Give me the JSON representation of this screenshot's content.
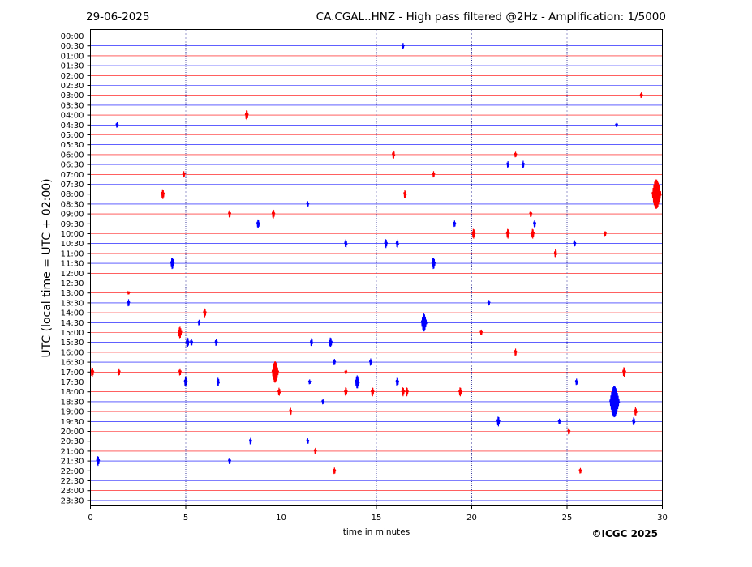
{
  "header": {
    "date": "29-06-2025",
    "title": "CA.CGAL..HNZ - High pass filtered @2Hz - Amplification: 1/5000"
  },
  "footer": {
    "copyright": "©ICGC 2025"
  },
  "chart_data": {
    "type": "line",
    "title": "CA.CGAL..HNZ - High pass filtered @2Hz - Amplification: 1/5000",
    "xlabel": "time in minutes",
    "ylabel": "UTC (local time = UTC + 02:00)",
    "xlim": [
      0,
      30
    ],
    "xticks": [
      0,
      5,
      10,
      15,
      20,
      25,
      30
    ],
    "xtick_labels": [
      "0",
      "5",
      "10",
      "15",
      "20",
      "25",
      "30"
    ],
    "vertical_gridlines_minutes": [
      5,
      10,
      15,
      20,
      25
    ],
    "trace_colors": [
      "#ff0000",
      "#0000ff"
    ],
    "rows": [
      "00:00",
      "00:30",
      "01:00",
      "01:30",
      "02:00",
      "02:30",
      "03:00",
      "03:30",
      "04:00",
      "04:30",
      "05:00",
      "05:30",
      "06:00",
      "06:30",
      "07:00",
      "07:30",
      "08:00",
      "08:30",
      "09:00",
      "09:30",
      "10:00",
      "10:30",
      "11:00",
      "11:30",
      "12:00",
      "12:30",
      "13:00",
      "13:30",
      "14:00",
      "14:30",
      "15:00",
      "15:30",
      "16:00",
      "16:30",
      "17:00",
      "17:30",
      "18:00",
      "18:30",
      "19:00",
      "19:30",
      "20:00",
      "20:30",
      "21:00",
      "21:30",
      "22:00",
      "22:30",
      "23:00",
      "23:30"
    ],
    "events": [
      {
        "row": "00:30",
        "minute": 16.4,
        "amp": 0.35
      },
      {
        "row": "03:00",
        "minute": 28.9,
        "amp": 0.35
      },
      {
        "row": "04:00",
        "minute": 8.2,
        "amp": 0.6
      },
      {
        "row": "04:30",
        "minute": 1.4,
        "amp": 0.35
      },
      {
        "row": "04:30",
        "minute": 27.6,
        "amp": 0.25
      },
      {
        "row": "06:00",
        "minute": 15.9,
        "amp": 0.5
      },
      {
        "row": "06:00",
        "minute": 22.3,
        "amp": 0.35
      },
      {
        "row": "06:30",
        "minute": 21.9,
        "amp": 0.4
      },
      {
        "row": "06:30",
        "minute": 22.7,
        "amp": 0.45
      },
      {
        "row": "07:00",
        "minute": 4.9,
        "amp": 0.4
      },
      {
        "row": "07:00",
        "minute": 18.0,
        "amp": 0.4
      },
      {
        "row": "08:00",
        "minute": 3.8,
        "amp": 0.6
      },
      {
        "row": "08:00",
        "minute": 16.5,
        "amp": 0.5
      },
      {
        "row": "08:00",
        "minute": 29.7,
        "amp": 1.8
      },
      {
        "row": "08:30",
        "minute": 11.4,
        "amp": 0.35
      },
      {
        "row": "09:00",
        "minute": 7.3,
        "amp": 0.45
      },
      {
        "row": "09:00",
        "minute": 9.6,
        "amp": 0.55
      },
      {
        "row": "09:00",
        "minute": 23.1,
        "amp": 0.4
      },
      {
        "row": "09:30",
        "minute": 8.8,
        "amp": 0.55
      },
      {
        "row": "09:30",
        "minute": 19.1,
        "amp": 0.4
      },
      {
        "row": "09:30",
        "minute": 23.3,
        "amp": 0.45
      },
      {
        "row": "10:00",
        "minute": 20.1,
        "amp": 0.6
      },
      {
        "row": "10:00",
        "minute": 21.9,
        "amp": 0.6
      },
      {
        "row": "10:00",
        "minute": 23.2,
        "amp": 0.6
      },
      {
        "row": "10:00",
        "minute": 27.0,
        "amp": 0.3
      },
      {
        "row": "10:30",
        "minute": 13.4,
        "amp": 0.5
      },
      {
        "row": "10:30",
        "minute": 15.5,
        "amp": 0.55
      },
      {
        "row": "10:30",
        "minute": 16.1,
        "amp": 0.5
      },
      {
        "row": "10:30",
        "minute": 25.4,
        "amp": 0.4
      },
      {
        "row": "11:00",
        "minute": 24.4,
        "amp": 0.5
      },
      {
        "row": "11:30",
        "minute": 4.3,
        "amp": 0.7
      },
      {
        "row": "11:30",
        "minute": 18.0,
        "amp": 0.7
      },
      {
        "row": "13:00",
        "minute": 2.0,
        "amp": 0.2
      },
      {
        "row": "13:30",
        "minute": 2.0,
        "amp": 0.45
      },
      {
        "row": "13:30",
        "minute": 20.9,
        "amp": 0.35
      },
      {
        "row": "14:00",
        "minute": 6.0,
        "amp": 0.55
      },
      {
        "row": "14:30",
        "minute": 5.7,
        "amp": 0.35
      },
      {
        "row": "14:30",
        "minute": 17.5,
        "amp": 1.1
      },
      {
        "row": "15:00",
        "minute": 4.7,
        "amp": 0.7
      },
      {
        "row": "15:00",
        "minute": 20.5,
        "amp": 0.35
      },
      {
        "row": "15:30",
        "minute": 5.1,
        "amp": 0.6
      },
      {
        "row": "15:30",
        "minute": 5.3,
        "amp": 0.45
      },
      {
        "row": "15:30",
        "minute": 6.6,
        "amp": 0.45
      },
      {
        "row": "15:30",
        "minute": 11.6,
        "amp": 0.5
      },
      {
        "row": "15:30",
        "minute": 12.6,
        "amp": 0.6
      },
      {
        "row": "16:00",
        "minute": 22.3,
        "amp": 0.45
      },
      {
        "row": "16:30",
        "minute": 12.8,
        "amp": 0.4
      },
      {
        "row": "16:30",
        "minute": 14.7,
        "amp": 0.45
      },
      {
        "row": "17:00",
        "minute": 0.1,
        "amp": 0.6
      },
      {
        "row": "17:00",
        "minute": 1.5,
        "amp": 0.45
      },
      {
        "row": "17:00",
        "minute": 4.7,
        "amp": 0.45
      },
      {
        "row": "17:00",
        "minute": 9.7,
        "amp": 1.3
      },
      {
        "row": "17:00",
        "minute": 13.4,
        "amp": 0.25
      },
      {
        "row": "17:00",
        "minute": 28.0,
        "amp": 0.6
      },
      {
        "row": "17:30",
        "minute": 5.0,
        "amp": 0.6
      },
      {
        "row": "17:30",
        "minute": 6.7,
        "amp": 0.5
      },
      {
        "row": "17:30",
        "minute": 11.5,
        "amp": 0.3
      },
      {
        "row": "17:30",
        "minute": 14.0,
        "amp": 0.8
      },
      {
        "row": "17:30",
        "minute": 16.1,
        "amp": 0.55
      },
      {
        "row": "17:30",
        "minute": 25.5,
        "amp": 0.4
      },
      {
        "row": "18:00",
        "minute": 9.9,
        "amp": 0.5
      },
      {
        "row": "18:00",
        "minute": 13.4,
        "amp": 0.55
      },
      {
        "row": "18:00",
        "minute": 14.8,
        "amp": 0.55
      },
      {
        "row": "18:00",
        "minute": 16.4,
        "amp": 0.55
      },
      {
        "row": "18:00",
        "minute": 16.6,
        "amp": 0.55
      },
      {
        "row": "18:00",
        "minute": 19.4,
        "amp": 0.55
      },
      {
        "row": "18:30",
        "minute": 12.2,
        "amp": 0.35
      },
      {
        "row": "18:30",
        "minute": 27.5,
        "amp": 1.9
      },
      {
        "row": "19:00",
        "minute": 10.5,
        "amp": 0.45
      },
      {
        "row": "19:00",
        "minute": 28.6,
        "amp": 0.5
      },
      {
        "row": "19:30",
        "minute": 21.4,
        "amp": 0.6
      },
      {
        "row": "19:30",
        "minute": 24.6,
        "amp": 0.35
      },
      {
        "row": "19:30",
        "minute": 28.5,
        "amp": 0.5
      },
      {
        "row": "20:00",
        "minute": 25.1,
        "amp": 0.4
      },
      {
        "row": "20:30",
        "minute": 8.4,
        "amp": 0.4
      },
      {
        "row": "20:30",
        "minute": 11.4,
        "amp": 0.35
      },
      {
        "row": "21:00",
        "minute": 11.8,
        "amp": 0.4
      },
      {
        "row": "21:30",
        "minute": 0.4,
        "amp": 0.6
      },
      {
        "row": "21:30",
        "minute": 7.3,
        "amp": 0.4
      },
      {
        "row": "22:00",
        "minute": 12.8,
        "amp": 0.4
      },
      {
        "row": "22:00",
        "minute": 25.7,
        "amp": 0.35
      }
    ]
  }
}
